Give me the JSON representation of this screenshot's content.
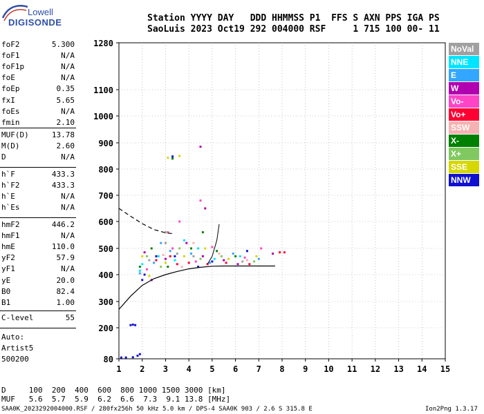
{
  "logo": {
    "top": "Lowell",
    "bottom": "DIGISONDE"
  },
  "header": {
    "line1": "Station YYYY DAY   DDD HHMMSS P1  FFS S AXN PPS IGA PS",
    "line2": "SaoLuis 2023 Oct19 292 004000 RSF     1 715 100 00- 11"
  },
  "params": [
    {
      "name": "foF2",
      "value": "5.300"
    },
    {
      "name": "foF1",
      "value": "N/A"
    },
    {
      "name": "foF1p",
      "value": "N/A"
    },
    {
      "name": "foE",
      "value": "N/A"
    },
    {
      "name": "foEp",
      "value": "0.35"
    },
    {
      "name": "fxI",
      "value": "5.65"
    },
    {
      "name": "foEs",
      "value": "N/A"
    },
    {
      "name": "fmin",
      "value": "2.10"
    },
    {
      "name": "MUF(D)",
      "value": "13.78"
    },
    {
      "name": "M(D)",
      "value": "2.60"
    },
    {
      "name": "D",
      "value": "N/A"
    },
    {
      "name": "h`F",
      "value": "433.3"
    },
    {
      "name": "h`F2",
      "value": "433.3"
    },
    {
      "name": "h`E",
      "value": "N/A"
    },
    {
      "name": "h`Es",
      "value": "N/A"
    },
    {
      "name": "hmF2",
      "value": "446.2"
    },
    {
      "name": "hmF1",
      "value": "N/A"
    },
    {
      "name": "hmE",
      "value": "110.0"
    },
    {
      "name": "yF2",
      "value": "57.9"
    },
    {
      "name": "yF1",
      "value": "N/A"
    },
    {
      "name": "yE",
      "value": "20.0"
    },
    {
      "name": "B0",
      "value": "82.4"
    },
    {
      "name": "B1",
      "value": "1.00"
    },
    {
      "name": "C-level",
      "value": "55"
    }
  ],
  "auto": {
    "label": "Auto:",
    "name": "Artist5",
    "version": "500200"
  },
  "legend": [
    {
      "label": "NoVal",
      "color": "#a0a0a0"
    },
    {
      "label": "NNE",
      "color": "#00e5ff"
    },
    {
      "label": "E",
      "color": "#33a6ff"
    },
    {
      "label": "W",
      "color": "#b000b0"
    },
    {
      "label": "Vo-",
      "color": "#ff44c8"
    },
    {
      "label": "Vo+",
      "color": "#ff0033"
    },
    {
      "label": "SSW",
      "color": "#f6b2b2"
    },
    {
      "label": "X-",
      "color": "#008000"
    },
    {
      "label": "X+",
      "color": "#80c860"
    },
    {
      "label": "SSE",
      "color": "#d6d600"
    },
    {
      "label": "NNW",
      "color": "#1010d0"
    }
  ],
  "footer": {
    "d_line": "D     100  200  400  600  800 1000 1500 3000 [km]",
    "muf_line": "MUF   5.6  5.7  5.9  6.2  6.6  7.3  9.1 13.8 [MHz]",
    "file_line": "SAA0K_2023292004000.RSF / 280fx256h 50 kHz 5.0 km / DPS-4 SAA0K 903 / 2.6 S 315.8 E",
    "version": "Ion2Png 1.3.17"
  },
  "chart_data": {
    "type": "scatter",
    "xlim": [
      1,
      15
    ],
    "ylim": [
      80,
      1280
    ],
    "x_ticks": [
      "1",
      "2",
      "3",
      "4",
      "5",
      "6",
      "7",
      "8",
      "9",
      "10",
      "11",
      "12",
      "13",
      "14",
      "15"
    ],
    "y_ticks": [
      "80",
      "200",
      "300",
      "400",
      "500",
      "600",
      "700",
      "800",
      "900",
      "1000",
      "1100",
      "1280"
    ],
    "y_tick_values": [
      80,
      200,
      300,
      400,
      500,
      600,
      700,
      800,
      900,
      1000,
      1100,
      1280
    ],
    "grid": true,
    "legend_position": "right",
    "series": [
      {
        "name": "NoVal",
        "color": "#a0a0a0",
        "points": [
          [
            2.3,
            455
          ],
          [
            3.5,
            480
          ],
          [
            4.2,
            470
          ],
          [
            6.3,
            450
          ],
          [
            3.0,
            520
          ]
        ]
      },
      {
        "name": "NNE",
        "color": "#00e5ff",
        "points": [
          [
            2.0,
            440
          ],
          [
            2.7,
            470
          ],
          [
            3.4,
            455
          ],
          [
            4.4,
            500
          ],
          [
            5.1,
            460
          ],
          [
            6.2,
            470
          ],
          [
            1.9,
            415
          ],
          [
            3.8,
            530
          ]
        ]
      },
      {
        "name": "E",
        "color": "#33a6ff",
        "points": [
          [
            1.9,
            405
          ],
          [
            2.5,
            445
          ],
          [
            3.2,
            490
          ],
          [
            4.1,
            480
          ],
          [
            4.9,
            445
          ],
          [
            5.9,
            480
          ],
          [
            7.0,
            460
          ],
          [
            2.8,
            520
          ]
        ]
      },
      {
        "name": "W",
        "color": "#b000b0",
        "points": [
          [
            2.1,
            485
          ],
          [
            3.0,
            460
          ],
          [
            3.9,
            520
          ],
          [
            4.6,
            470
          ],
          [
            5.5,
            455
          ],
          [
            6.1,
            440
          ],
          [
            7.6,
            480
          ],
          [
            2.4,
            380
          ],
          [
            4.5,
            885
          ],
          [
            4.7,
            650
          ]
        ]
      },
      {
        "name": "Vo-",
        "color": "#ff44c8",
        "points": [
          [
            2.2,
            420
          ],
          [
            3.3,
            500
          ],
          [
            4.3,
            450
          ],
          [
            5.0,
            505
          ],
          [
            6.4,
            465
          ],
          [
            7.1,
            500
          ],
          [
            3.6,
            600
          ],
          [
            4.5,
            680
          ],
          [
            3.1,
            560
          ]
        ]
      },
      {
        "name": "Vo+",
        "color": "#ff0033",
        "points": [
          [
            2.6,
            455
          ],
          [
            3.5,
            440
          ],
          [
            4.0,
            445
          ],
          [
            4.8,
            440
          ],
          [
            5.6,
            445
          ],
          [
            6.6,
            440
          ],
          [
            7.9,
            485
          ],
          [
            8.1,
            485
          ],
          [
            3.2,
            470
          ]
        ]
      },
      {
        "name": "SSW",
        "color": "#f6b2b2",
        "points": [
          [
            2.9,
            475
          ],
          [
            4.2,
            520
          ],
          [
            5.3,
            480
          ],
          [
            6.5,
            455
          ],
          [
            3.7,
            430
          ]
        ]
      },
      {
        "name": "X-",
        "color": "#008000",
        "points": [
          [
            2.4,
            500
          ],
          [
            3.1,
            430
          ],
          [
            4.1,
            500
          ],
          [
            5.2,
            490
          ],
          [
            6.0,
            470
          ],
          [
            3.3,
            840
          ],
          [
            1.9,
            430
          ],
          [
            4.6,
            560
          ]
        ]
      },
      {
        "name": "X+",
        "color": "#80c860",
        "points": [
          [
            2.8,
            430
          ],
          [
            3.6,
            500
          ],
          [
            4.5,
            460
          ],
          [
            5.4,
            470
          ],
          [
            6.8,
            450
          ],
          [
            2.2,
            470
          ],
          [
            3.0,
            560
          ]
        ]
      },
      {
        "name": "SSE",
        "color": "#d6d600",
        "points": [
          [
            2.0,
            470
          ],
          [
            3.0,
            445
          ],
          [
            3.8,
            470
          ],
          [
            4.7,
            500
          ],
          [
            5.7,
            460
          ],
          [
            6.9,
            470
          ],
          [
            3.1,
            843
          ],
          [
            3.6,
            850
          ],
          [
            2.3,
            395
          ]
        ]
      },
      {
        "name": "NNW",
        "color": "#1010d0",
        "points": [
          [
            2.0,
            380
          ],
          [
            2.6,
            470
          ],
          [
            3.4,
            470
          ],
          [
            4.4,
            430
          ],
          [
            5.0,
            450
          ],
          [
            6.5,
            490
          ],
          [
            1.5,
            210
          ],
          [
            1.6,
            212
          ],
          [
            1.7,
            210
          ],
          [
            1.1,
            85
          ],
          [
            1.3,
            85
          ],
          [
            1.6,
            86
          ],
          [
            1.8,
            92
          ],
          [
            1.9,
            98
          ],
          [
            2.1,
            400
          ],
          [
            3.3,
            848
          ]
        ]
      }
    ],
    "curves": {
      "profile_solid": [
        [
          1,
          270
        ],
        [
          1.5,
          320
        ],
        [
          2,
          360
        ],
        [
          2.5,
          385
        ],
        [
          3,
          400
        ],
        [
          3.5,
          412
        ],
        [
          4,
          422
        ],
        [
          4.5,
          428
        ],
        [
          5,
          432
        ],
        [
          5.5,
          433
        ],
        [
          6,
          433
        ],
        [
          7,
          433
        ],
        [
          7.7,
          433
        ]
      ],
      "profile_dashed": [
        [
          1,
          650
        ],
        [
          1.5,
          620
        ],
        [
          2,
          592
        ],
        [
          2.5,
          570
        ],
        [
          3,
          558
        ],
        [
          3.3,
          555
        ]
      ],
      "trace_segment": [
        [
          4.8,
          440
        ],
        [
          5.0,
          470
        ],
        [
          5.2,
          530
        ],
        [
          5.3,
          590
        ]
      ]
    }
  }
}
